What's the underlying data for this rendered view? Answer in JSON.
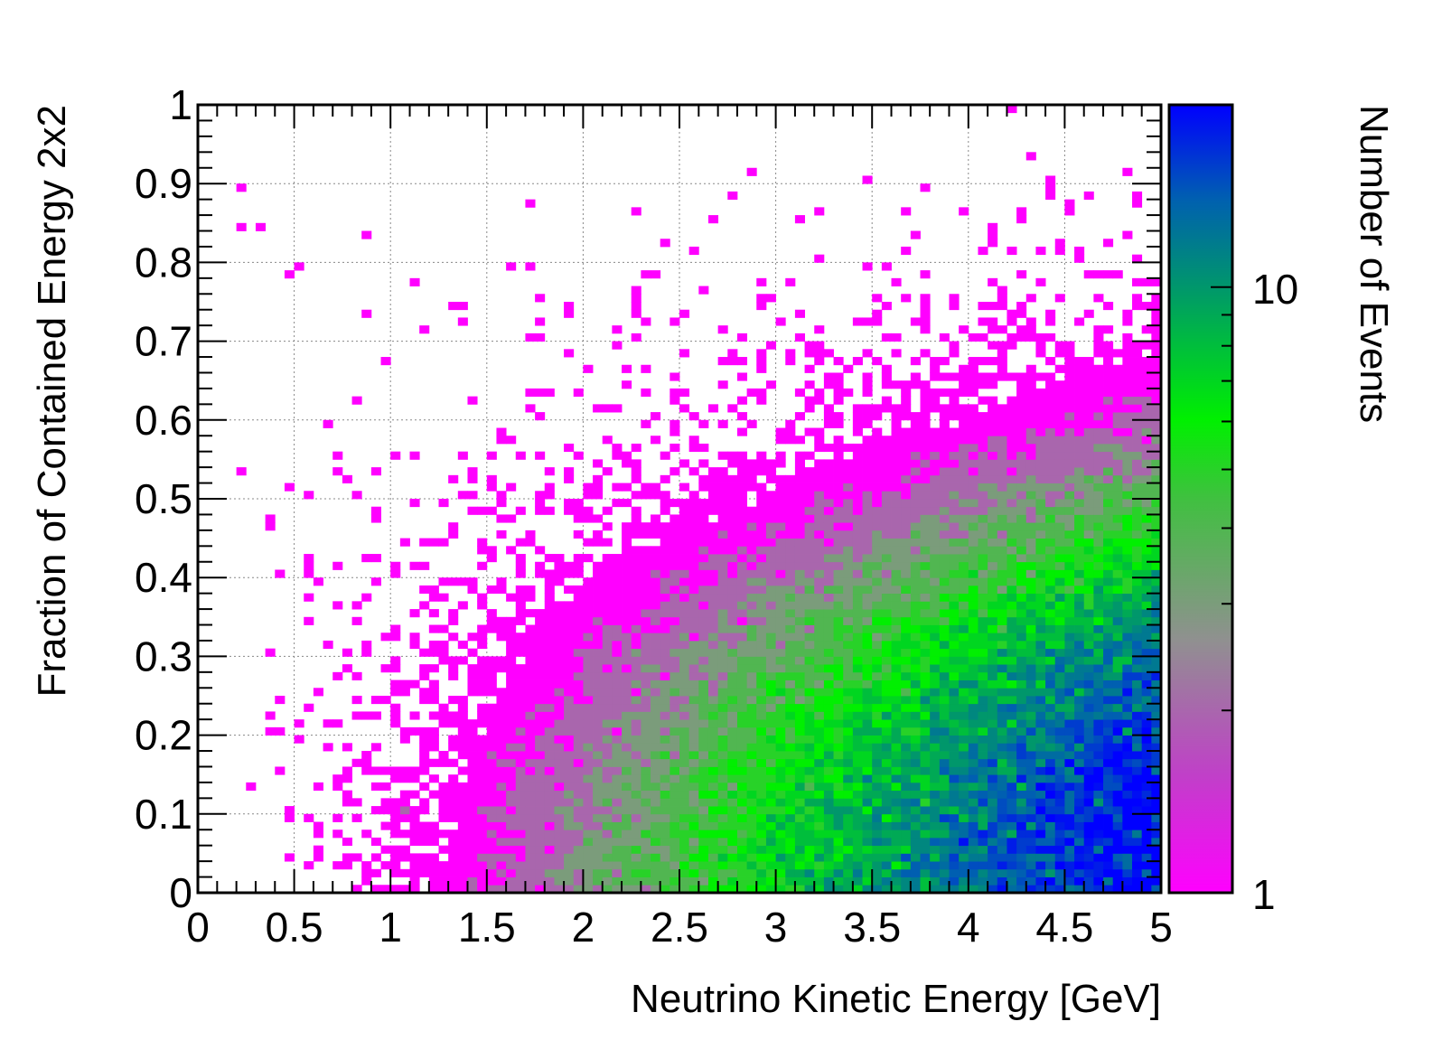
{
  "chart_data": {
    "type": "heatmap",
    "title": "",
    "xlabel": "Neutrino Kinetic Energy [GeV]",
    "ylabel": "Fraction of Contained Energy 2x2",
    "zlabel": "Number of Events",
    "xlim": [
      0,
      5
    ],
    "ylim": [
      0,
      1
    ],
    "zlim": [
      1,
      20
    ],
    "z_scale": "log",
    "x_ticks": [
      "0",
      "0.5",
      "1",
      "1.5",
      "2",
      "2.5",
      "3",
      "3.5",
      "4",
      "4.5",
      "5"
    ],
    "y_ticks": [
      "0",
      "0.1",
      "0.2",
      "0.3",
      "0.4",
      "0.5",
      "0.6",
      "0.7",
      "0.8",
      "0.9",
      "1"
    ],
    "z_ticks": [
      "1",
      "10"
    ],
    "grid": true,
    "legend": "colorbar-right",
    "bins": {
      "nx": 100,
      "ny": 100
    },
    "density_model": {
      "description": "Event density rises with energy (zero below ~0.2 GeV) and peaks near low contained-energy fraction",
      "regions": [
        {
          "x_range": [
            0,
            1.5
          ],
          "y_range": [
            0,
            0.9
          ],
          "typical_count": 1
        },
        {
          "x_range": [
            1.5,
            2.5
          ],
          "y_range": [
            0,
            0.6
          ],
          "typical_count": 3
        },
        {
          "x_range": [
            2.5,
            4
          ],
          "y_range": [
            0,
            0.45
          ],
          "typical_count": 7
        },
        {
          "x_range": [
            4,
            5
          ],
          "y_range": [
            0,
            0.2
          ],
          "typical_count": 16
        }
      ]
    },
    "colors": {
      "low": "#ff00ff",
      "mid_low": "#b060b0",
      "mid": "#808080",
      "mid_high": "#00e600",
      "high_mid": "#00a050",
      "high": "#0050c8",
      "max": "#0000ff"
    }
  }
}
